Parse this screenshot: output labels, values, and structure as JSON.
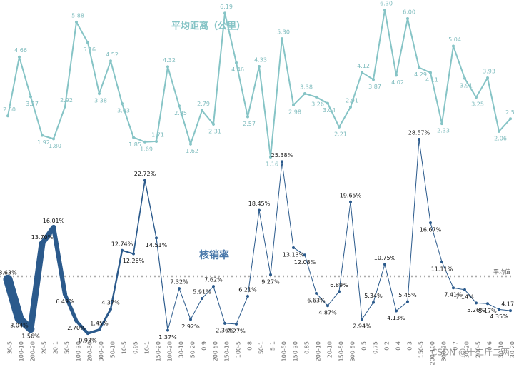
{
  "chart_data": {
    "type": "line",
    "categories": [
      "30-5",
      "100-10",
      "200-20",
      "20-5",
      "20-1",
      "50-5",
      "100-30",
      "200-30",
      "300-30",
      "50-10",
      "10-5",
      "0.95",
      "10-1",
      "150-20",
      "100-20",
      "30-10",
      "50-20",
      "0.9",
      "200-50",
      "150-10",
      "100-5",
      "0.8",
      "50-1",
      "5-1",
      "100-50",
      "150-30",
      "0.85",
      "200-10",
      "20-10",
      "150-50",
      "300-50",
      "0.5",
      "0.75",
      "0.2",
      "0.4",
      "0.3",
      "150-5",
      "200-100",
      "300-20",
      "0.7",
      "30-20",
      "200-5",
      "0.6",
      "30-10",
      "30-20"
    ],
    "series": [
      {
        "name": "平均距离（公里）",
        "color": "#86c4c6",
        "values": [
          2.6,
          4.66,
          3.27,
          1.92,
          1.8,
          2.92,
          5.88,
          5.16,
          3.38,
          4.52,
          3.03,
          1.85,
          1.69,
          1.71,
          4.32,
          2.95,
          1.62,
          2.79,
          2.31,
          6.19,
          4.46,
          2.57,
          4.33,
          1.16,
          5.3,
          2.98,
          3.38,
          3.26,
          3.04,
          2.21,
          2.91,
          4.12,
          3.87,
          6.3,
          4.02,
          6.0,
          4.29,
          4.11,
          2.33,
          5.04,
          3.91,
          3.25,
          3.93,
          2.06,
          2.5
        ],
        "value_labels": [
          "2.60",
          "4.66",
          "3.27",
          "1.92",
          "1.80",
          "2.92",
          "5.88",
          "5.16",
          "3.38",
          "4.52",
          "3.03",
          "1.85",
          "1.69",
          "1.71",
          "4.32",
          "2.95",
          "1.62",
          "2.79",
          "2.31",
          "6.19",
          "4.46",
          "2.57",
          "4.33",
          "1.16",
          "5.30",
          "2.98",
          "3.38",
          "3.26",
          "3.04",
          "2.21",
          "2.91",
          "4.12",
          "3.87",
          "6.30",
          "4.02",
          "6.00",
          "4.29",
          "4.11",
          "2.33",
          "5.04",
          "3.91",
          "3.25",
          "3.93",
          "2.06",
          "2.50"
        ]
      },
      {
        "name": "核销率",
        "color": "#2b5a8c",
        "values": [
          8.63,
          3.04,
          1.56,
          13.7,
          16.01,
          6.49,
          2.7,
          0.93,
          1.45,
          4.37,
          12.74,
          12.26,
          22.72,
          14.51,
          1.37,
          7.32,
          2.92,
          5.91,
          7.62,
          2.36,
          2.27,
          6.21,
          18.45,
          9.27,
          25.38,
          13.13,
          12.08,
          6.63,
          4.87,
          6.89,
          19.65,
          2.94,
          5.34,
          10.75,
          4.13,
          5.45,
          28.57,
          16.67,
          11.11,
          7.41,
          7.14,
          5.26,
          5.17,
          4.35,
          4.17
        ],
        "value_labels": [
          "8.63%",
          "3.04%",
          "1.56%",
          "13.70%",
          "16.01%",
          "6.49%",
          "2.70%",
          "0.93%",
          "1.45%",
          "4.37%",
          "12.74%",
          "12.26%",
          "22.72%",
          "14.51%",
          "1.37%",
          "7.32%",
          "2.92%",
          "5.91%",
          "7.62%",
          "2.36%",
          "2.27%",
          "6.21%",
          "18.45%",
          "9.27%",
          "25.38%",
          "13.13%",
          "12.08%",
          "6.63%",
          "4.87%",
          "6.89%",
          "19.65%",
          "2.94%",
          "5.34%",
          "10.75%",
          "4.13%",
          "5.45%",
          "28.57%",
          "16.67%",
          "11.11%",
          "7.41%",
          "7.14%",
          "5.26%",
          "5.17%",
          "4.35%",
          "4.17%"
        ],
        "reference_line": {
          "label": "平均值",
          "value": 9.06
        }
      }
    ],
    "watermark": "CSDN @十二斤二两"
  }
}
